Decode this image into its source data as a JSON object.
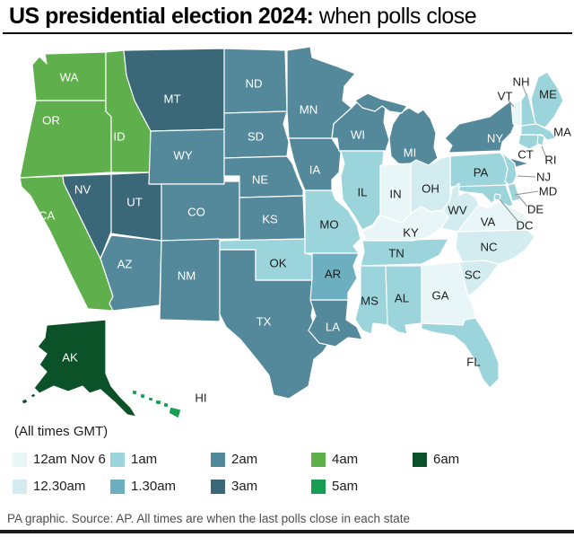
{
  "header": {
    "title_bold": "US presidential election 2024:",
    "title_regular": " when polls close"
  },
  "map": {
    "note": "(All times GMT)",
    "times": {
      "12am": "#e9f6f7",
      "12.30am": "#d3ecef",
      "1am": "#9bd4db",
      "1.30am": "#6cafc0",
      "2am": "#54899b",
      "3am": "#3a6878",
      "4am": "#5fb04c",
      "5am": "#179e53",
      "6am": "#0c5228"
    },
    "colors": {
      "border": "#ffffff",
      "label_dark": "#1d1d1d",
      "label_light": "#ffffff",
      "leader_line": "#8f8f8f"
    },
    "states": [
      {
        "id": "WA",
        "label": "WA",
        "time": "4am"
      },
      {
        "id": "OR",
        "label": "OR",
        "time": "4am"
      },
      {
        "id": "ID",
        "label": "ID",
        "time": "4am"
      },
      {
        "id": "CA",
        "label": "CA",
        "time": "4am"
      },
      {
        "id": "MT",
        "label": "MT",
        "time": "3am"
      },
      {
        "id": "NV",
        "label": "NV",
        "time": "3am"
      },
      {
        "id": "UT",
        "label": "UT",
        "time": "3am"
      },
      {
        "id": "WY",
        "label": "WY",
        "time": "2am"
      },
      {
        "id": "CO",
        "label": "CO",
        "time": "2am"
      },
      {
        "id": "AZ",
        "label": "AZ",
        "time": "2am"
      },
      {
        "id": "NM",
        "label": "NM",
        "time": "2am"
      },
      {
        "id": "ND",
        "label": "ND",
        "time": "2am"
      },
      {
        "id": "SD",
        "label": "SD",
        "time": "2am"
      },
      {
        "id": "NE",
        "label": "NE",
        "time": "2am"
      },
      {
        "id": "KS",
        "label": "KS",
        "time": "2am"
      },
      {
        "id": "TX",
        "label": "TX",
        "time": "2am"
      },
      {
        "id": "MN",
        "label": "MN",
        "time": "2am"
      },
      {
        "id": "IA",
        "label": "IA",
        "time": "2am"
      },
      {
        "id": "WI",
        "label": "WI",
        "time": "2am"
      },
      {
        "id": "MI",
        "label": "MI",
        "time": "2am"
      },
      {
        "id": "NY",
        "label": "NY",
        "time": "2am"
      },
      {
        "id": "LA",
        "label": "LA",
        "time": "2am"
      },
      {
        "id": "OK",
        "label": "OK",
        "time": "1am"
      },
      {
        "id": "MO",
        "label": "MO",
        "time": "1am"
      },
      {
        "id": "IL",
        "label": "IL",
        "time": "1am"
      },
      {
        "id": "TN",
        "label": "TN",
        "time": "1am"
      },
      {
        "id": "MS",
        "label": "MS",
        "time": "1am"
      },
      {
        "id": "AL",
        "label": "AL",
        "time": "1am"
      },
      {
        "id": "FL",
        "label": "FL",
        "time": "1am"
      },
      {
        "id": "PA",
        "label": "PA",
        "time": "1am"
      },
      {
        "id": "NJ",
        "label": "NJ",
        "time": "1am"
      },
      {
        "id": "MD",
        "label": "MD",
        "time": "1am"
      },
      {
        "id": "DE",
        "label": "DE",
        "time": "1am"
      },
      {
        "id": "DC",
        "label": "DC",
        "time": "1am"
      },
      {
        "id": "CT",
        "label": "CT",
        "time": "1am"
      },
      {
        "id": "RI",
        "label": "RI",
        "time": "1am"
      },
      {
        "id": "MA",
        "label": "MA",
        "time": "1am"
      },
      {
        "id": "NH",
        "label": "NH",
        "time": "1am"
      },
      {
        "id": "ME",
        "label": "ME",
        "time": "1am"
      },
      {
        "id": "AR",
        "label": "AR",
        "time": "1.30am"
      },
      {
        "id": "OH",
        "label": "OH",
        "time": "12.30am"
      },
      {
        "id": "WV",
        "label": "WV",
        "time": "12.30am"
      },
      {
        "id": "NC",
        "label": "NC",
        "time": "12.30am"
      },
      {
        "id": "SC",
        "label": "SC",
        "time": "12.30am"
      },
      {
        "id": "IN",
        "label": "IN",
        "time": "12am"
      },
      {
        "id": "KY",
        "label": "KY",
        "time": "12am"
      },
      {
        "id": "VA",
        "label": "VA",
        "time": "12am"
      },
      {
        "id": "GA",
        "label": "GA",
        "time": "12am"
      },
      {
        "id": "VT",
        "label": "VT",
        "time": "12am"
      },
      {
        "id": "AK",
        "label": "AK",
        "time": "6am"
      },
      {
        "id": "HI",
        "label": "HI",
        "time": "5am"
      }
    ]
  },
  "legend": {
    "columns": [
      [
        {
          "label": "12am Nov 6",
          "time": "12am"
        },
        {
          "label": "12.30am",
          "time": "12.30am"
        }
      ],
      [
        {
          "label": "1am",
          "time": "1am"
        },
        {
          "label": "1.30am",
          "time": "1.30am"
        }
      ],
      [
        {
          "label": "2am",
          "time": "2am"
        },
        {
          "label": "3am",
          "time": "3am"
        }
      ],
      [
        {
          "label": "4am",
          "time": "4am"
        },
        {
          "label": "5am",
          "time": "5am"
        }
      ],
      [
        {
          "label": "6am",
          "time": "6am"
        }
      ]
    ]
  },
  "footer": {
    "text": "PA graphic. Source: AP. All times are when the last polls close in each state"
  }
}
